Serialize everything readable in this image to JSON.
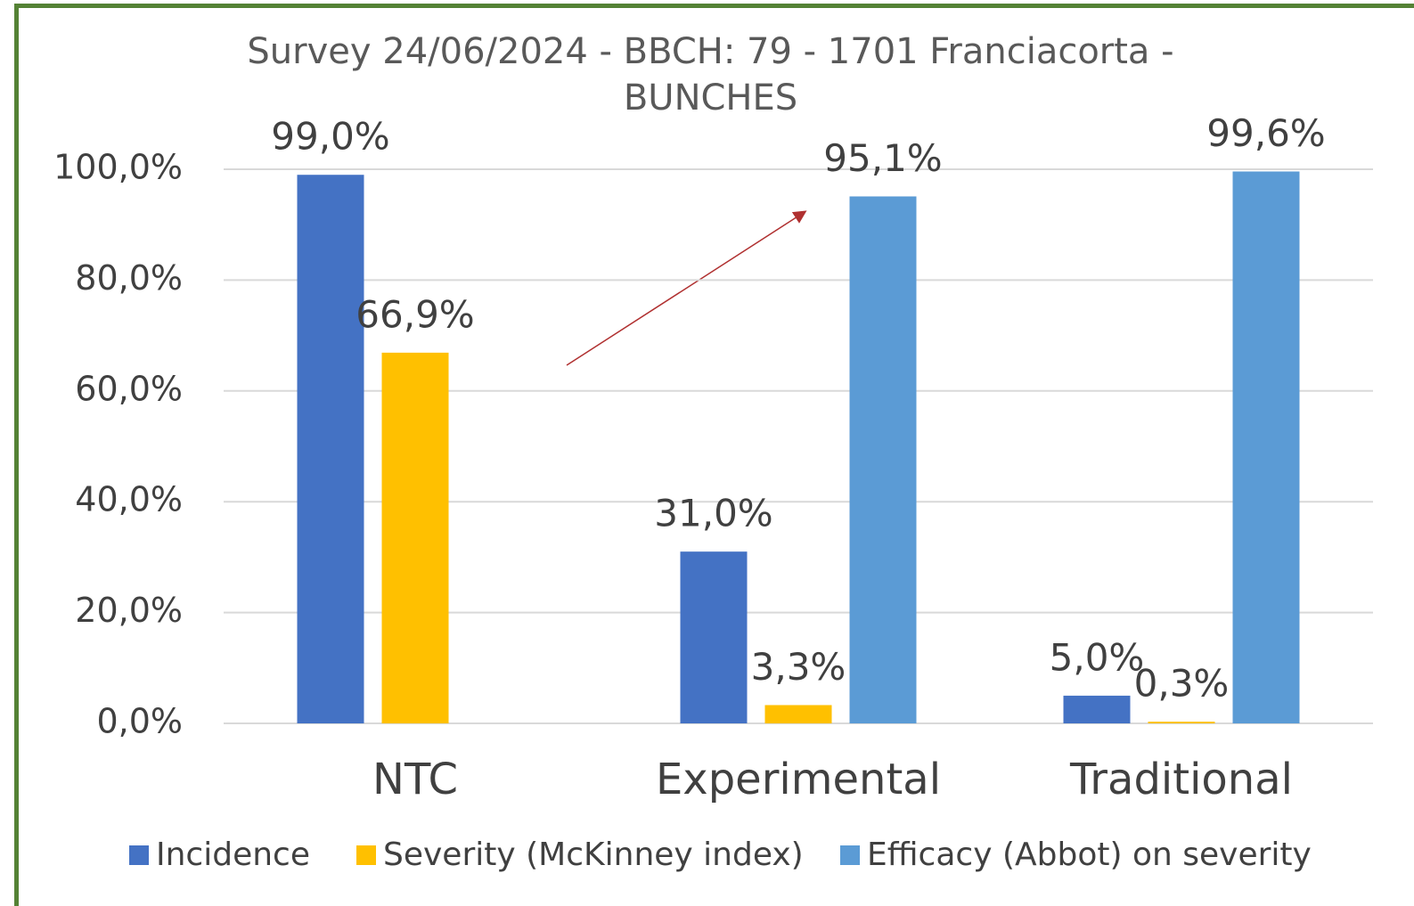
{
  "chart_data": {
    "type": "bar",
    "title": "Survey 24/06/2024 - BBCH: 79 - 1701 Franciacorta - BUNCHES",
    "categories": [
      "NTC",
      "Experimental",
      "Traditional"
    ],
    "series": [
      {
        "name": "Incidence",
        "color": "#4472c4",
        "values": [
          99.0,
          31.0,
          5.0
        ],
        "value_labels": [
          "99,0%",
          "31,0%",
          "5,0%"
        ]
      },
      {
        "name": "Severity (McKinney index)",
        "color": "#ffc000",
        "values": [
          66.9,
          3.3,
          0.3
        ],
        "value_labels": [
          "66,9%",
          "3,3%",
          "0,3%"
        ]
      },
      {
        "name": "Efficacy (Abbot) on severity",
        "color": "#5b9bd5",
        "values": [
          null,
          95.1,
          99.6
        ],
        "value_labels": [
          null,
          "95,1%",
          "99,6%"
        ]
      }
    ],
    "ylim": [
      0,
      100
    ],
    "yticks": [
      {
        "value": 0,
        "label": "0,0%"
      },
      {
        "value": 20,
        "label": "20,0%"
      },
      {
        "value": 40,
        "label": "40,0%"
      },
      {
        "value": 60,
        "label": "60,0%"
      },
      {
        "value": 80,
        "label": "80,0%"
      },
      {
        "value": 100,
        "label": "100,0%"
      }
    ],
    "grid": true,
    "legend": "bottom"
  }
}
